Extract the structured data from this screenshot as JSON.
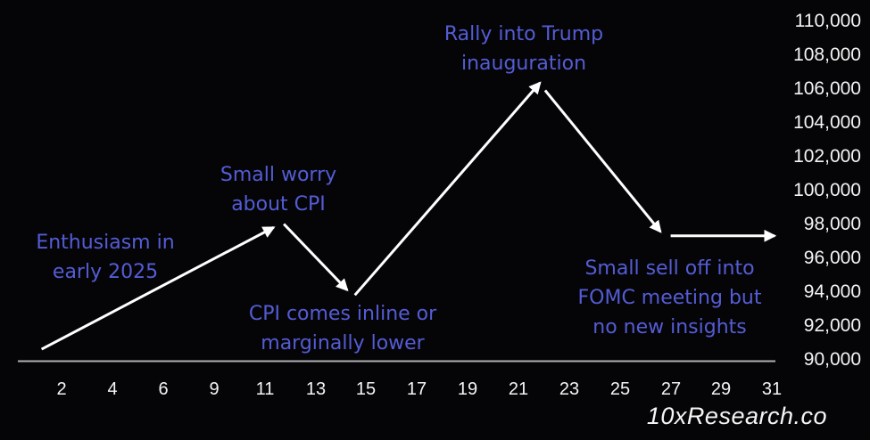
{
  "chart_data": {
    "type": "line",
    "title": "",
    "xlabel": "",
    "ylabel": "",
    "x_tick_labels": [
      "2",
      "4",
      "6",
      "9",
      "11",
      "13",
      "15",
      "17",
      "19",
      "21",
      "23",
      "25",
      "27",
      "29",
      "31"
    ],
    "x_tick_days": [
      2,
      4,
      6,
      9,
      11,
      13,
      15,
      17,
      19,
      21,
      23,
      25,
      27,
      29,
      31
    ],
    "y_ticks": [
      110000,
      108000,
      106000,
      104000,
      102000,
      100000,
      98000,
      96000,
      94000,
      92000,
      90000
    ],
    "y_tick_labels": [
      "110,000",
      "108,000",
      "106,000",
      "104,000",
      "102,000",
      "100,000",
      "98,000",
      "96,000",
      "94,000",
      "92,000",
      "90,000"
    ],
    "ylim": [
      90000,
      110000
    ],
    "grid": "off",
    "legend": "none",
    "line_style": "white arrow segments with gaps at vertices",
    "arrow_segments": [
      {
        "from": {
          "day": 1.2,
          "value": 90600
        },
        "to": {
          "day": 11.35,
          "value": 97800
        }
      },
      {
        "from": {
          "day": 11.75,
          "value": 98000
        },
        "to": {
          "day": 14.25,
          "value": 94100
        }
      },
      {
        "from": {
          "day": 14.55,
          "value": 93800
        },
        "to": {
          "day": 21.85,
          "value": 106350
        }
      },
      {
        "from": {
          "day": 22.05,
          "value": 105900
        },
        "to": {
          "day": 26.6,
          "value": 97550
        }
      },
      {
        "from": {
          "day": 27.0,
          "value": 97300
        },
        "to": {
          "day": 31.1,
          "value": 97300
        }
      }
    ],
    "path_vertices_summary": [
      {
        "day": 1.2,
        "value": 90600
      },
      {
        "day": 11.5,
        "value": 97900
      },
      {
        "day": 14.4,
        "value": 94000
      },
      {
        "day": 21.9,
        "value": 106350
      },
      {
        "day": 26.8,
        "value": 97450
      },
      {
        "day": 31.1,
        "value": 97300
      }
    ],
    "annotations": [
      {
        "id": "enthusiasm",
        "text": "Enthusiasm in\nearly 2025"
      },
      {
        "id": "small-worry",
        "text": "Small worry\nabout CPI"
      },
      {
        "id": "cpi-inline",
        "text": "CPI comes inline or\nmarginally lower"
      },
      {
        "id": "rally",
        "text": "Rally into Trump\ninauguration"
      },
      {
        "id": "fomc",
        "text": "Small sell off into\nFOMC meeting but\nno new insights"
      }
    ],
    "colors": {
      "background": "#050507",
      "annotation_text": "#545cd5",
      "axis_text": "#f4f4f4",
      "price_line": "#ffffff",
      "axis_line": "#aeb0b4"
    }
  },
  "footer": {
    "watermark": "10xResearch.co"
  }
}
